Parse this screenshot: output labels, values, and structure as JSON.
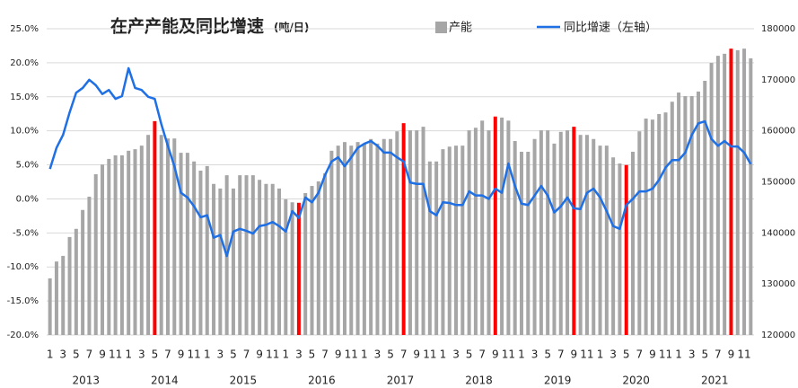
{
  "chart_data": {
    "type": "combo",
    "title": "在产产能及同比增速",
    "subtitle": "(吨/日)",
    "categories": [
      "1",
      null,
      "3",
      null,
      "5",
      null,
      "7",
      null,
      "9",
      null,
      "11",
      null,
      "1",
      null,
      "3",
      null,
      "5",
      null,
      "7",
      null,
      "9",
      null,
      "11",
      null,
      "1",
      null,
      "3",
      null,
      "5",
      null,
      "7",
      null,
      "9",
      null,
      "11",
      null,
      "1",
      null,
      "3",
      null,
      "5",
      null,
      "7",
      null,
      "9",
      null,
      "11",
      null,
      "1",
      null,
      "3",
      null,
      "5",
      null,
      "7",
      null,
      "9",
      null,
      "11",
      null,
      "1",
      null,
      "3",
      null,
      "5",
      null,
      "7",
      null,
      "9",
      null,
      "11",
      null,
      "1",
      null,
      "3",
      null,
      "5",
      null,
      "7",
      null,
      "9",
      null,
      "11",
      null,
      "1",
      null,
      "3",
      null,
      "5",
      null,
      "7",
      null,
      "9",
      null,
      "11",
      null,
      "1",
      null,
      "3",
      null,
      "5",
      null,
      "7",
      null,
      "9",
      null,
      "11",
      null
    ],
    "years": [
      "2013",
      "2014",
      "2015",
      "2016",
      "2017",
      "2018",
      "2019",
      "2020",
      "2021"
    ],
    "ylim": [
      -20,
      25
    ],
    "yticks": [
      {
        "value": 25,
        "label": "25.0%"
      },
      {
        "value": 20,
        "label": "20.0%"
      },
      {
        "value": 15,
        "label": "15.0%"
      },
      {
        "value": 10,
        "label": "10.0%"
      },
      {
        "value": 5,
        "label": "5.0%"
      },
      {
        "value": 0,
        "label": "0.0%"
      },
      {
        "value": -5,
        "label": "-5.0%"
      },
      {
        "value": -10,
        "label": "-10.0%"
      },
      {
        "value": -15,
        "label": "-15.0%"
      },
      {
        "value": -20,
        "label": "-20.0%"
      }
    ],
    "y2lim": [
      120000,
      180000
    ],
    "y2ticks": [
      180000,
      170000,
      160000,
      150000,
      140000,
      130000,
      120000
    ],
    "grid": true,
    "series": [
      {
        "name": "产能",
        "type": "bar",
        "axis": "y2",
        "color": "#a6a6a6",
        "colors": [
          "#a6a6a6",
          "#a6a6a6",
          "#a6a6a6",
          "#a6a6a6",
          "#a6a6a6",
          "#a6a6a6",
          "#a6a6a6",
          "#a6a6a6",
          "#a6a6a6",
          "#a6a6a6",
          "#a6a6a6",
          "#a6a6a6",
          "#a6a6a6",
          "#a6a6a6",
          "#a6a6a6",
          "#a6a6a6",
          "#ff0000",
          "#a6a6a6",
          "#a6a6a6",
          "#a6a6a6",
          "#a6a6a6",
          "#a6a6a6",
          "#a6a6a6",
          "#a6a6a6",
          "#a6a6a6",
          "#a6a6a6",
          "#a6a6a6",
          "#a6a6a6",
          "#a6a6a6",
          "#a6a6a6",
          "#a6a6a6",
          "#a6a6a6",
          "#a6a6a6",
          "#a6a6a6",
          "#a6a6a6",
          "#a6a6a6",
          "#a6a6a6",
          "#a6a6a6",
          "#ff0000",
          "#a6a6a6",
          "#a6a6a6",
          "#a6a6a6",
          "#a6a6a6",
          "#a6a6a6",
          "#a6a6a6",
          "#a6a6a6",
          "#a6a6a6",
          "#a6a6a6",
          "#a6a6a6",
          "#a6a6a6",
          "#a6a6a6",
          "#a6a6a6",
          "#a6a6a6",
          "#a6a6a6",
          "#ff0000",
          "#a6a6a6",
          "#a6a6a6",
          "#a6a6a6",
          "#a6a6a6",
          "#a6a6a6",
          "#a6a6a6",
          "#a6a6a6",
          "#a6a6a6",
          "#a6a6a6",
          "#a6a6a6",
          "#a6a6a6",
          "#a6a6a6",
          "#a6a6a6",
          "#ff0000",
          "#a6a6a6",
          "#a6a6a6",
          "#a6a6a6",
          "#a6a6a6",
          "#a6a6a6",
          "#a6a6a6",
          "#a6a6a6",
          "#a6a6a6",
          "#a6a6a6",
          "#a6a6a6",
          "#a6a6a6",
          "#ff0000",
          "#a6a6a6",
          "#a6a6a6",
          "#a6a6a6",
          "#a6a6a6",
          "#a6a6a6",
          "#a6a6a6",
          "#a6a6a6",
          "#ff0000",
          "#a6a6a6",
          "#a6a6a6",
          "#a6a6a6",
          "#a6a6a6",
          "#a6a6a6",
          "#a6a6a6",
          "#a6a6a6",
          "#a6a6a6",
          "#a6a6a6",
          "#a6a6a6",
          "#a6a6a6",
          "#a6a6a6",
          "#a6a6a6",
          "#a6a6a6",
          "#a6a6a6",
          "#ff0000",
          "#a6a6a6",
          "#a6a6a6",
          "#a6a6a6"
        ],
        "values": [
          131100,
          134400,
          135500,
          139200,
          140800,
          144500,
          147100,
          151500,
          153400,
          154500,
          155200,
          155200,
          156100,
          156400,
          157100,
          159200,
          161900,
          159200,
          158500,
          158500,
          155700,
          155700,
          154000,
          152200,
          153100,
          149600,
          148700,
          151300,
          148700,
          151300,
          151300,
          151300,
          150400,
          149600,
          149600,
          148700,
          146600,
          146000,
          145900,
          147800,
          149200,
          150100,
          151700,
          156100,
          157100,
          157800,
          157100,
          157800,
          157500,
          158400,
          157500,
          158400,
          158400,
          159900,
          161500,
          160100,
          160100,
          160800,
          154000,
          154000,
          156400,
          156900,
          157100,
          157100,
          160100,
          160600,
          162000,
          160100,
          162800,
          162600,
          162000,
          158000,
          155900,
          155900,
          158400,
          160100,
          160100,
          157500,
          159800,
          160100,
          160800,
          159200,
          159200,
          158400,
          157100,
          157100,
          154800,
          153600,
          153300,
          155900,
          159900,
          162400,
          162200,
          163300,
          163600,
          165700,
          167500,
          166800,
          166800,
          167700,
          169800,
          173300,
          174700,
          175100,
          176100,
          175800,
          176100,
          174200
        ]
      },
      {
        "name": "同比增速（左轴）",
        "type": "line",
        "color": "#1f6fe5",
        "values": [
          4.4,
          7.5,
          9.4,
          12.7,
          15.6,
          16.3,
          17.5,
          16.7,
          15.4,
          16.0,
          14.7,
          15.1,
          19.2,
          16.3,
          16.0,
          15.0,
          14.7,
          11.0,
          7.8,
          4.8,
          0.9,
          0.2,
          -1.1,
          -2.7,
          -2.4,
          -5.7,
          -5.3,
          -8.4,
          -4.8,
          -4.4,
          -4.7,
          -5.1,
          -4.0,
          -3.8,
          -3.4,
          -4.0,
          -4.8,
          -1.8,
          -2.8,
          0.2,
          -0.5,
          0.9,
          3.5,
          5.5,
          6.1,
          4.8,
          6.1,
          7.5,
          8.1,
          8.5,
          7.8,
          6.8,
          6.8,
          6.1,
          5.5,
          2.4,
          2.2,
          2.2,
          -1.8,
          -2.4,
          -0.5,
          -0.6,
          -0.9,
          -0.9,
          1.1,
          0.5,
          0.5,
          0.0,
          1.5,
          0.9,
          5.2,
          1.9,
          -0.7,
          -0.9,
          0.5,
          1.9,
          0.5,
          -2.0,
          -1.1,
          0.2,
          -1.4,
          -1.5,
          0.9,
          1.5,
          0.2,
          -1.8,
          -4.0,
          -4.4,
          -0.9,
          0.0,
          1.1,
          1.1,
          1.5,
          2.8,
          4.6,
          5.7,
          5.7,
          6.8,
          9.4,
          11.1,
          11.4,
          8.8,
          7.8,
          8.5,
          7.7,
          7.7,
          6.8,
          5.1
        ]
      }
    ]
  }
}
